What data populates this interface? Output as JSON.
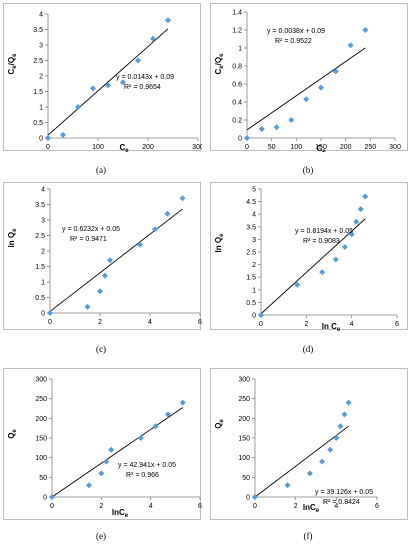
{
  "colors": {
    "marker": "#5b9bd5",
    "trendline": "#000000",
    "axis": "#7f7f7f",
    "text": "#000000"
  },
  "chart_data": [
    {
      "id": "a",
      "caption": "(a)",
      "type": "scatter",
      "xlabel": "Ce",
      "ylabel": "Ce/Qe",
      "xlabel_main": "C",
      "xlabel_sub": "e",
      "ylabel_parts": [
        [
          "C",
          false
        ],
        [
          "e",
          true
        ],
        [
          "/Q",
          false
        ],
        [
          "e",
          true
        ]
      ],
      "xlim": [
        0,
        300
      ],
      "ylim": [
        0,
        4
      ],
      "xticks": [
        0,
        100,
        200,
        300
      ],
      "yticks": [
        0,
        0.5,
        1,
        1.5,
        2,
        2.5,
        3,
        3.5,
        4
      ],
      "xtick_labels": [
        "0",
        "100",
        "200",
        "300"
      ],
      "ytick_labels": [
        "0",
        "0.5",
        "1",
        "1.5",
        "2",
        "2.5",
        "3",
        "3.5",
        "4"
      ],
      "points": [
        [
          0,
          0
        ],
        [
          30,
          0.1
        ],
        [
          60,
          1.0
        ],
        [
          90,
          1.6
        ],
        [
          120,
          1.7
        ],
        [
          150,
          1.8
        ],
        [
          180,
          2.5
        ],
        [
          210,
          3.2
        ],
        [
          240,
          3.8
        ]
      ],
      "trendline": {
        "slope": 0.0143,
        "intercept": 0.09,
        "x_range": [
          0,
          240
        ]
      },
      "equation": "y = 0.0143x + 0.09",
      "r2": "R² = 0.9654"
    },
    {
      "id": "b",
      "caption": "(b)",
      "type": "scatter",
      "xlabel": "Ce",
      "ylabel": "Ce/Qe",
      "xlabel_main": "C",
      "xlabel_sub": "e",
      "ylabel_parts": [
        [
          "C",
          false
        ],
        [
          "e",
          true
        ],
        [
          "/Q",
          false
        ],
        [
          "e",
          true
        ]
      ],
      "xlim": [
        0,
        300
      ],
      "ylim": [
        0,
        1.4
      ],
      "xticks": [
        0,
        50,
        100,
        150,
        200,
        250,
        300
      ],
      "yticks": [
        0,
        0.2,
        0.4,
        0.6,
        0.8,
        1,
        1.2,
        1.4
      ],
      "xtick_labels": [
        "0",
        "50",
        "100",
        "150",
        "200",
        "250",
        "300"
      ],
      "ytick_labels": [
        "0",
        "0.2",
        "0.4",
        "0.6",
        "0.8",
        "1",
        "1.2",
        "1.4"
      ],
      "points": [
        [
          0,
          0
        ],
        [
          30,
          0.1
        ],
        [
          60,
          0.12
        ],
        [
          90,
          0.2
        ],
        [
          120,
          0.43
        ],
        [
          150,
          0.56
        ],
        [
          180,
          0.74
        ],
        [
          210,
          1.03
        ],
        [
          240,
          1.2
        ]
      ],
      "trendline": {
        "slope": 0.0038,
        "intercept": 0.09,
        "x_range": [
          0,
          240
        ]
      },
      "equation": "y = 0.0038x + 0.09",
      "r2": "R² = 0.9522"
    },
    {
      "id": "c",
      "caption": "(c)",
      "type": "scatter",
      "xlabel": "ln Ce",
      "ylabel": "ln Qe",
      "xlabel_main": "ln C",
      "xlabel_sub": "e",
      "ylabel_parts": [
        [
          "ln Q",
          false
        ],
        [
          "e",
          true
        ]
      ],
      "xlim": [
        0,
        6
      ],
      "ylim": [
        0,
        4
      ],
      "xticks": [
        0,
        2,
        4,
        6
      ],
      "yticks": [
        0,
        0.5,
        1,
        1.5,
        2,
        2.5,
        3,
        3.5,
        4
      ],
      "xtick_labels": [
        "0",
        "2",
        "4",
        "6"
      ],
      "ytick_labels": [
        "0",
        "0.5",
        "1",
        "1.5",
        "2",
        "2.5",
        "3",
        "3.5",
        "4"
      ],
      "points": [
        [
          0,
          0
        ],
        [
          1.5,
          0.2
        ],
        [
          2.0,
          0.7
        ],
        [
          2.2,
          1.2
        ],
        [
          2.4,
          1.7
        ],
        [
          3.6,
          2.2
        ],
        [
          4.2,
          2.7
        ],
        [
          4.7,
          3.2
        ],
        [
          5.3,
          3.7
        ]
      ],
      "trendline": {
        "slope": 0.6232,
        "intercept": 0.05,
        "x_range": [
          0,
          5.3
        ]
      },
      "equation": "y = 0.6232x + 0.05",
      "r2": "R² = 0.9471"
    },
    {
      "id": "d",
      "caption": "(d)",
      "type": "scatter",
      "xlabel": "ln Ce",
      "ylabel": "ln Qe",
      "xlabel_main": "ln C",
      "xlabel_sub": "e",
      "ylabel_parts": [
        [
          "ln Q",
          false
        ],
        [
          "e",
          true
        ]
      ],
      "xlim": [
        0,
        6
      ],
      "ylim": [
        0,
        5
      ],
      "xticks": [
        0,
        2,
        4,
        6
      ],
      "yticks": [
        0,
        0.5,
        1,
        1.5,
        2,
        2.5,
        3,
        3.5,
        4,
        4.5,
        5
      ],
      "xtick_labels": [
        "0",
        "2",
        "4",
        "6"
      ],
      "ytick_labels": [
        "0",
        "0.5",
        "1",
        "1.5",
        "2",
        "2.5",
        "3",
        "3.5",
        "4",
        "4.5",
        "5"
      ],
      "points": [
        [
          0,
          0
        ],
        [
          1.6,
          1.2
        ],
        [
          2.7,
          1.7
        ],
        [
          3.3,
          2.2
        ],
        [
          3.7,
          2.7
        ],
        [
          4.0,
          3.2
        ],
        [
          4.2,
          3.7
        ],
        [
          4.4,
          4.2
        ],
        [
          4.6,
          4.7
        ]
      ],
      "trendline": {
        "slope": 0.8194,
        "intercept": 0.05,
        "x_range": [
          0,
          4.6
        ]
      },
      "equation": "y = 0.8194x + 0.05",
      "r2": "R² = 0.9083"
    },
    {
      "id": "e",
      "caption": "(e)",
      "type": "scatter",
      "xlabel": "lnCe",
      "ylabel": "Qe",
      "xlabel_main": "lnC",
      "xlabel_sub": "e",
      "ylabel_parts": [
        [
          "Q",
          false
        ],
        [
          "e",
          true
        ]
      ],
      "xlim": [
        0,
        6
      ],
      "ylim": [
        0,
        300
      ],
      "xticks": [
        0,
        2,
        4,
        6
      ],
      "yticks": [
        0,
        50,
        100,
        150,
        200,
        250,
        300
      ],
      "xtick_labels": [
        "0",
        "2",
        "4",
        "6"
      ],
      "ytick_labels": [
        "0",
        "50",
        "100",
        "150",
        "200",
        "250",
        "300"
      ],
      "points": [
        [
          0,
          0
        ],
        [
          1.5,
          30
        ],
        [
          2.0,
          60
        ],
        [
          2.2,
          90
        ],
        [
          2.4,
          120
        ],
        [
          3.6,
          150
        ],
        [
          4.2,
          180
        ],
        [
          4.7,
          210
        ],
        [
          5.3,
          240
        ]
      ],
      "trendline": {
        "slope": 42.941,
        "intercept": 0.05,
        "x_range": [
          0,
          5.3
        ]
      },
      "equation": "y = 42.941x + 0.05",
      "r2": "R² = 0.966"
    },
    {
      "id": "f",
      "caption": "(f)",
      "type": "scatter",
      "xlabel": "lnCe",
      "ylabel": "Qe",
      "xlabel_main": "lnC",
      "xlabel_sub": "e",
      "ylabel_parts": [
        [
          "Q",
          false
        ],
        [
          "e",
          true
        ]
      ],
      "xlim": [
        0,
        6
      ],
      "ylim": [
        0,
        300
      ],
      "xticks": [
        0,
        2,
        4,
        6
      ],
      "yticks": [
        0,
        50,
        100,
        150,
        200,
        250,
        300
      ],
      "xtick_labels": [
        "0",
        "2",
        "4",
        "6"
      ],
      "ytick_labels": [
        "0",
        "50",
        "100",
        "150",
        "200",
        "250",
        "300"
      ],
      "points": [
        [
          0,
          0
        ],
        [
          1.6,
          30
        ],
        [
          2.7,
          60
        ],
        [
          3.3,
          90
        ],
        [
          3.7,
          120
        ],
        [
          4.0,
          150
        ],
        [
          4.2,
          180
        ],
        [
          4.4,
          210
        ],
        [
          4.6,
          240
        ]
      ],
      "trendline": {
        "slope": 39.126,
        "intercept": 0.05,
        "x_range": [
          0,
          4.6
        ]
      },
      "equation": "y = 39.126x + 0.05",
      "r2": "R² = 0.8424"
    }
  ]
}
